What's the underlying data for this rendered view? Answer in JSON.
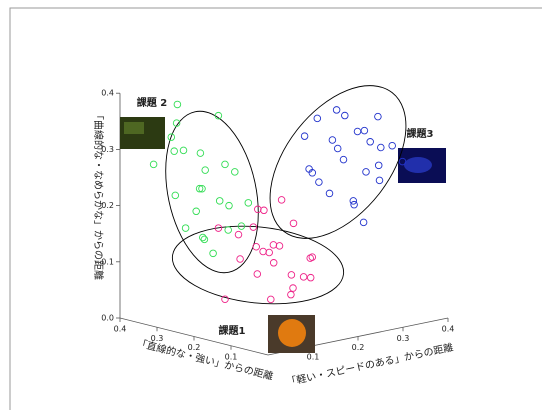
{
  "chart_data": {
    "type": "scatter3d",
    "xlabel": "「直線的な・強い」からの距離",
    "ylabel": "「軽い・スピードのある」からの距離",
    "zlabel": "「曲線的な・なめらかな」からの距離",
    "xlim": [
      0,
      0.4
    ],
    "ylim": [
      0,
      0.4
    ],
    "zlim": [
      0,
      0.4
    ],
    "xticks": [
      0.1,
      0.2,
      0.3,
      0.4
    ],
    "yticks": [
      0.1,
      0.2,
      0.3,
      0.4
    ],
    "zticks": [
      {
        "value": 0,
        "label": "0.0"
      },
      0.1,
      0.2,
      0.3,
      0.4
    ],
    "series": [
      {
        "name": "課題 2",
        "color": "#33dd55",
        "x": [
          0.3,
          0.28,
          0.34,
          0.26,
          0.32,
          0.36,
          0.29,
          0.25,
          0.31,
          0.33,
          0.27,
          0.35,
          0.3,
          0.24,
          0.37,
          0.28,
          0.32,
          0.26,
          0.34,
          0.29,
          0.31,
          0.23,
          0.33,
          0.27
        ],
        "y": [
          0.1,
          0.08,
          0.12,
          0.14,
          0.06,
          0.09,
          0.15,
          0.11,
          0.04,
          0.13,
          0.07,
          0.1,
          0.16,
          0.09,
          0.05,
          0.12,
          0.08,
          0.17,
          0.14,
          0.03,
          0.11,
          0.13,
          0.07,
          0.1
        ],
        "z": [
          0.23,
          0.3,
          0.18,
          0.26,
          0.35,
          0.21,
          0.15,
          0.28,
          0.33,
          0.13,
          0.24,
          0.29,
          0.19,
          0.22,
          0.27,
          0.36,
          0.16,
          0.2,
          0.25,
          0.31,
          0.14,
          0.17,
          0.38,
          0.12
        ]
      },
      {
        "name": "課題1",
        "color": "#ee2288",
        "x": [
          0.22,
          0.18,
          0.25,
          0.2,
          0.27,
          0.15,
          0.23,
          0.19,
          0.26,
          0.21,
          0.16,
          0.24,
          0.28,
          0.17,
          0.22,
          0.2,
          0.25,
          0.14,
          0.23,
          0.19,
          0.21,
          0.26,
          0.18,
          0.24
        ],
        "y": [
          0.17,
          0.2,
          0.14,
          0.22,
          0.16,
          0.18,
          0.24,
          0.13,
          0.19,
          0.15,
          0.23,
          0.21,
          0.12,
          0.17,
          0.26,
          0.19,
          0.11,
          0.21,
          0.18,
          0.25,
          0.14,
          0.22,
          0.16,
          0.2
        ],
        "z": [
          0.12,
          0.08,
          0.15,
          0.05,
          0.1,
          0.18,
          0.03,
          0.14,
          0.07,
          0.2,
          0.11,
          0.09,
          0.16,
          0.22,
          0.06,
          0.13,
          0.04,
          0.08,
          0.19,
          0.1,
          0.17,
          0.02,
          0.14,
          0.11
        ]
      },
      {
        "name": "課題3",
        "color": "#2233cc",
        "x": [
          0.1,
          0.08,
          0.13,
          0.06,
          0.11,
          0.15,
          0.09,
          0.05,
          0.12,
          0.07,
          0.14,
          0.1,
          0.04,
          0.12,
          0.08,
          0.16,
          0.11,
          0.06,
          0.09,
          0.13,
          0.07,
          0.1,
          0.05,
          0.12
        ],
        "y": [
          0.25,
          0.28,
          0.22,
          0.3,
          0.2,
          0.26,
          0.32,
          0.24,
          0.29,
          0.21,
          0.27,
          0.33,
          0.26,
          0.19,
          0.31,
          0.23,
          0.28,
          0.22,
          0.35,
          0.25,
          0.27,
          0.3,
          0.34,
          0.18
        ],
        "z": [
          0.29,
          0.34,
          0.25,
          0.31,
          0.37,
          0.22,
          0.27,
          0.35,
          0.2,
          0.39,
          0.3,
          0.24,
          0.33,
          0.28,
          0.36,
          0.26,
          0.21,
          0.38,
          0.3,
          0.32,
          0.18,
          0.26,
          0.28,
          0.34
        ]
      }
    ]
  }
}
